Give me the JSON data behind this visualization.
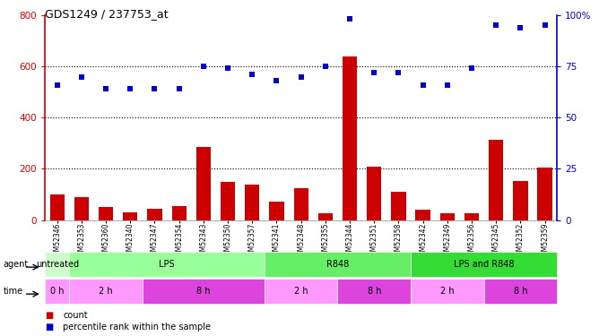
{
  "title": "GDS1249 / 237753_at",
  "samples": [
    "GSM52346",
    "GSM52353",
    "GSM52360",
    "GSM52340",
    "GSM52347",
    "GSM52354",
    "GSM52343",
    "GSM52350",
    "GSM52357",
    "GSM52341",
    "GSM52348",
    "GSM52355",
    "GSM52344",
    "GSM52351",
    "GSM52358",
    "GSM52342",
    "GSM52349",
    "GSM52356",
    "GSM52345",
    "GSM52352",
    "GSM52359"
  ],
  "counts": [
    100,
    88,
    52,
    30,
    45,
    55,
    285,
    148,
    138,
    72,
    125,
    28,
    640,
    207,
    110,
    42,
    28,
    25,
    315,
    152,
    205
  ],
  "percentiles_pct": [
    66,
    70,
    64,
    64,
    64,
    64,
    75,
    74,
    71,
    68,
    70,
    75,
    98,
    72,
    72,
    66,
    66,
    74,
    95,
    94,
    95
  ],
  "ylim_left": [
    0,
    800
  ],
  "ylim_right": [
    0,
    100
  ],
  "yticks_left": [
    0,
    200,
    400,
    600,
    800
  ],
  "yticks_right": [
    0,
    25,
    50,
    75,
    100
  ],
  "bar_color": "#cc0000",
  "dot_color": "#0000cc",
  "agent_groups": [
    {
      "label": "untreated",
      "start": 0,
      "end": 1,
      "color": "#ccffcc"
    },
    {
      "label": "LPS",
      "start": 1,
      "end": 9,
      "color": "#99ff99"
    },
    {
      "label": "R848",
      "start": 9,
      "end": 15,
      "color": "#66ee66"
    },
    {
      "label": "LPS and R848",
      "start": 15,
      "end": 21,
      "color": "#33dd33"
    }
  ],
  "time_groups": [
    {
      "label": "0 h",
      "start": 0,
      "end": 1,
      "color": "#ff99ff"
    },
    {
      "label": "2 h",
      "start": 1,
      "end": 4,
      "color": "#ff99ff"
    },
    {
      "label": "8 h",
      "start": 4,
      "end": 9,
      "color": "#dd44dd"
    },
    {
      "label": "2 h",
      "start": 9,
      "end": 12,
      "color": "#ff99ff"
    },
    {
      "label": "8 h",
      "start": 12,
      "end": 15,
      "color": "#dd44dd"
    },
    {
      "label": "2 h",
      "start": 15,
      "end": 18,
      "color": "#ff99ff"
    },
    {
      "label": "8 h",
      "start": 18,
      "end": 21,
      "color": "#dd44dd"
    }
  ],
  "tick_label_color_left": "#cc0000",
  "tick_label_color_right": "#0000cc",
  "plot_bg": "#ffffff",
  "fig_bg": "#ffffff"
}
